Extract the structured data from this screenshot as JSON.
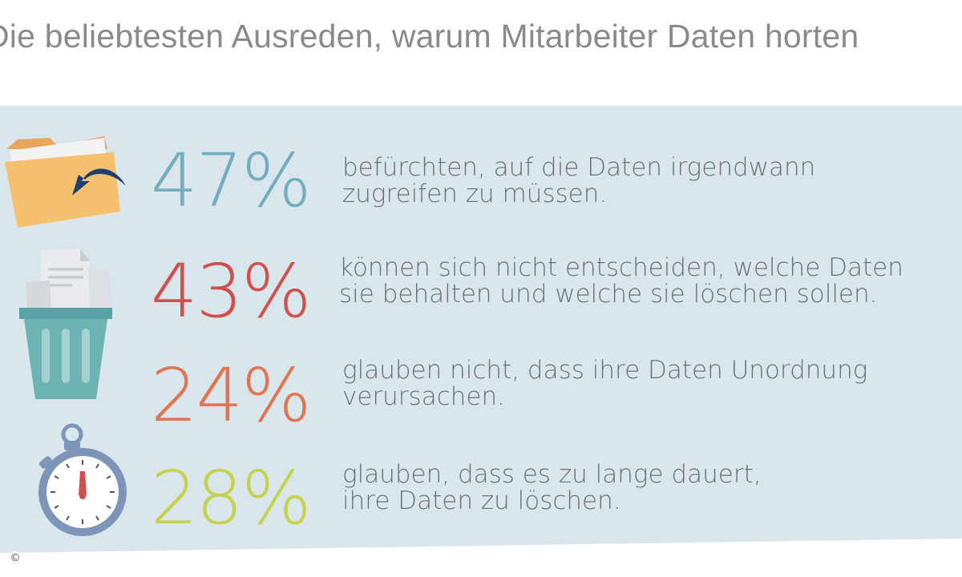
{
  "title": "Die beliebtesten Ausreden, warum Mitarbeiter Daten horten",
  "colors": {
    "panel": "#d9e6ec",
    "teal": "#72aebe",
    "red": "#d0504f",
    "orange": "#e17452",
    "green": "#c5d24a",
    "text": "#6e6e73"
  },
  "items": [
    {
      "icon": "folder-icon",
      "percent": "47%",
      "line1": "befürchten, auf die Daten irgendwann",
      "line2": "zugreifen zu müssen."
    },
    {
      "icon": "trash-can-icon",
      "percent": "43%",
      "line1": "können sich nicht entscheiden, welche Daten",
      "line2": "sie behalten und welche sie löschen sollen."
    },
    {
      "icon": "trash-can-icon",
      "percent": "24%",
      "line1": "glauben nicht, dass ihre Daten Unordnung",
      "line2": "verursachen."
    },
    {
      "icon": "stopwatch-icon",
      "percent": "28%",
      "line1": "glauben, dass es zu lange dauert,",
      "line2": "ihre Daten zu löschen."
    }
  ],
  "copyright": "©"
}
